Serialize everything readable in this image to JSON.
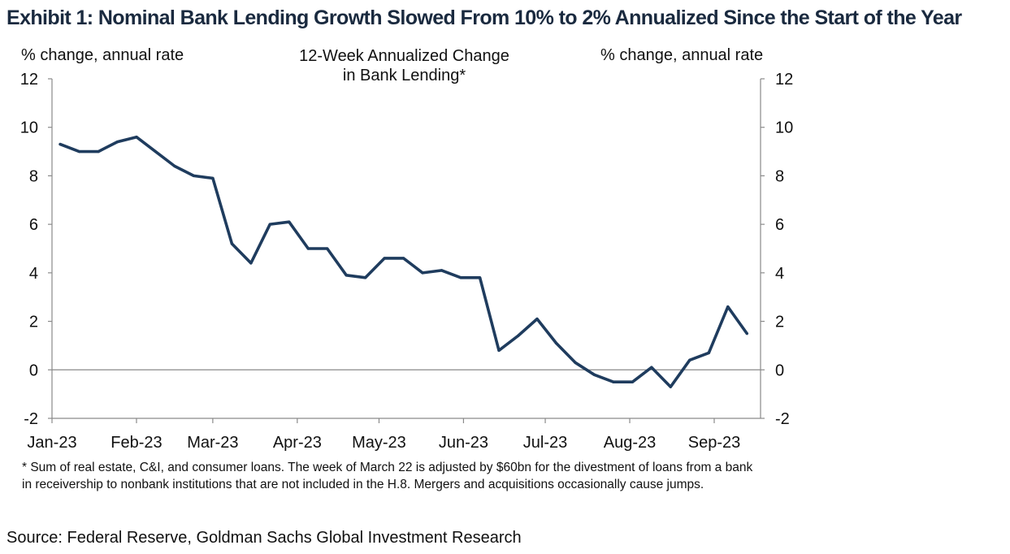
{
  "exhibit_title": "Exhibit 1: Nominal Bank Lending Growth Slowed From 10% to 2% Annualized Since the Start of the Year",
  "footnote": "* Sum of real estate, C&I, and consumer loans. The week of March 22 is adjusted by $60bn for the divestment of loans from a bank in receivership to nonbank institutions that are not included in the H.8. Mergers and acquisitions occasionally cause jumps.",
  "source": "Source: Federal Reserve, Goldman Sachs Global Investment Research",
  "chart_data": {
    "type": "line",
    "title": "12-Week Annualized Change in Bank Lending*",
    "title_lines": [
      "12-Week Annualized Change",
      "in Bank Lending*"
    ],
    "ylabel_left": "% change, annual rate",
    "ylabel_right": "% change, annual rate",
    "ylim": [
      -2,
      12
    ],
    "yticks": [
      -2,
      0,
      2,
      4,
      6,
      8,
      10,
      12
    ],
    "x_tick_labels": [
      "Jan-23",
      "Feb-23",
      "Mar-23",
      "Apr-23",
      "May-23",
      "Jun-23",
      "Jul-23",
      "Aug-23",
      "Sep-23"
    ],
    "grid": false,
    "zero_line": true,
    "line_color": "#1f3c5e",
    "series": [
      {
        "x": [
          "2023-01-04",
          "2023-01-11",
          "2023-01-18",
          "2023-01-25",
          "2023-02-01",
          "2023-02-08",
          "2023-02-15",
          "2023-02-22",
          "2023-03-01",
          "2023-03-08",
          "2023-03-15",
          "2023-03-22",
          "2023-03-29",
          "2023-04-05",
          "2023-04-12",
          "2023-04-19",
          "2023-04-26",
          "2023-05-03",
          "2023-05-10",
          "2023-05-17",
          "2023-05-24",
          "2023-05-31",
          "2023-06-07",
          "2023-06-14",
          "2023-06-21",
          "2023-06-28",
          "2023-07-05",
          "2023-07-12",
          "2023-07-19",
          "2023-07-26",
          "2023-08-02",
          "2023-08-09",
          "2023-08-16",
          "2023-08-23",
          "2023-08-30",
          "2023-09-06",
          "2023-09-13"
        ],
        "values": [
          9.3,
          9.0,
          9.0,
          9.4,
          9.6,
          9.0,
          8.4,
          8.0,
          7.9,
          5.2,
          4.4,
          6.0,
          6.1,
          5.0,
          5.0,
          3.9,
          3.8,
          4.6,
          4.6,
          4.0,
          4.1,
          3.8,
          3.8,
          0.8,
          1.4,
          2.1,
          1.1,
          0.3,
          -0.2,
          -0.5,
          -0.5,
          0.1,
          -0.7,
          0.4,
          0.7,
          2.6,
          1.5
        ]
      }
    ]
  }
}
